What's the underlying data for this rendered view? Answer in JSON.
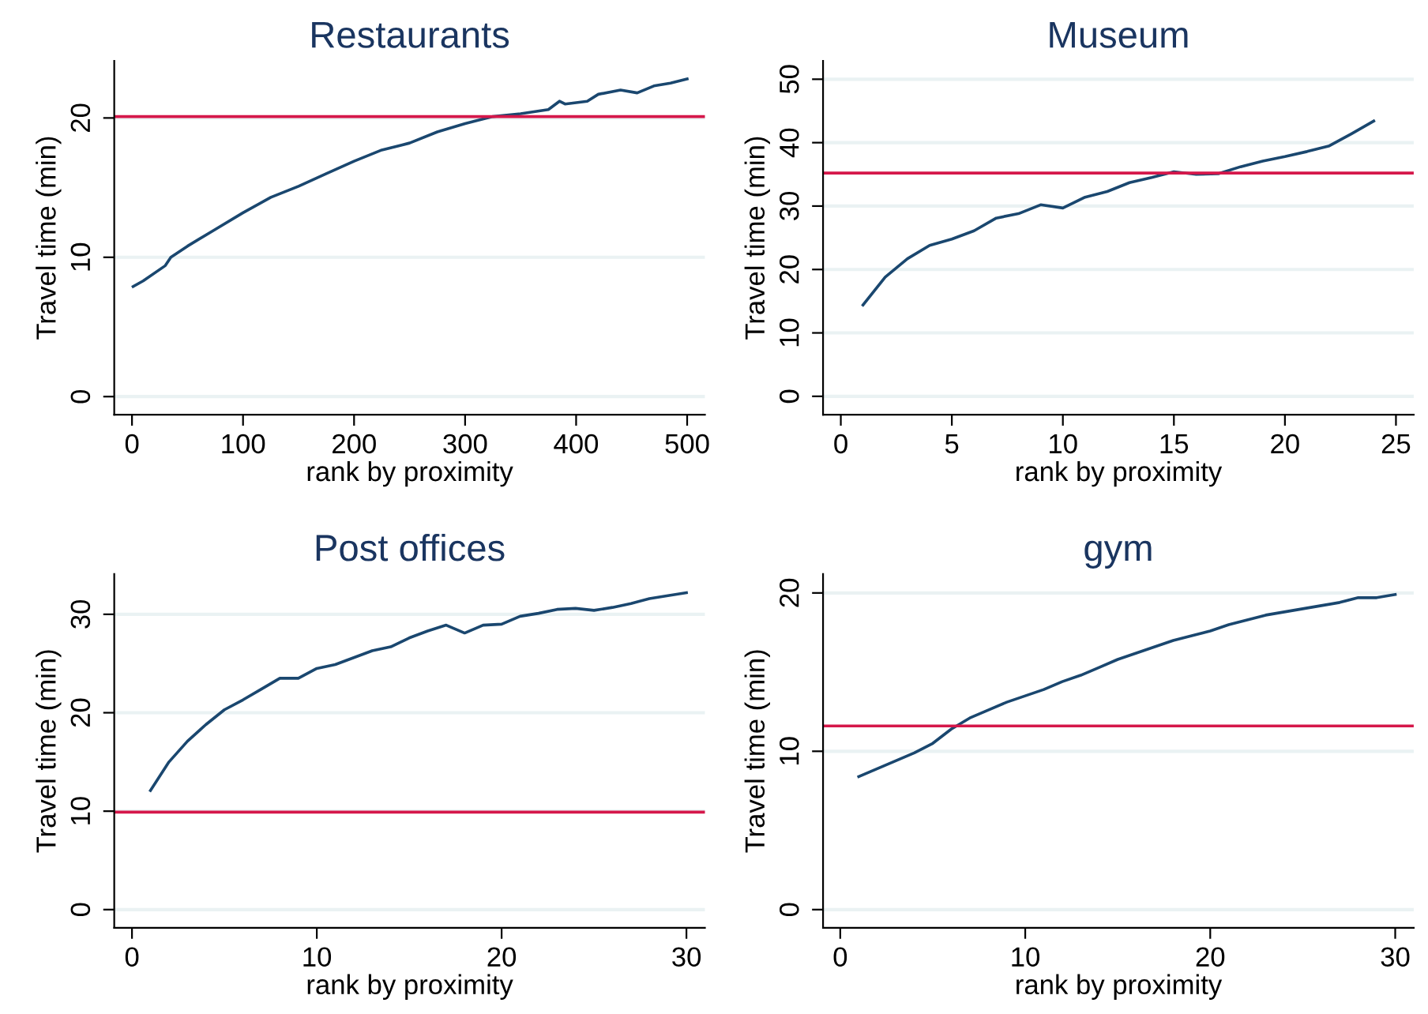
{
  "chart_data": [
    {
      "type": "line",
      "title": "Restaurants",
      "xlabel": "rank by proximity",
      "ylabel": "Travel time (min)",
      "grid": "y",
      "xlim": [
        -16,
        516
      ],
      "ylim": [
        -1.3,
        24.1
      ],
      "xticks": [
        0,
        100,
        200,
        300,
        400,
        500
      ],
      "yticks": [
        0,
        10,
        20
      ],
      "series": [
        {
          "color": "#1a476f",
          "x": [
            1,
            10,
            30,
            35,
            50,
            75,
            100,
            125,
            150,
            175,
            200,
            225,
            250,
            275,
            300,
            325,
            350,
            375,
            385,
            390,
            410,
            420,
            440,
            455,
            470,
            485,
            500
          ],
          "values": [
            7.9,
            8.3,
            9.4,
            10.0,
            10.8,
            12.0,
            13.2,
            14.3,
            15.1,
            16.0,
            16.9,
            17.7,
            18.2,
            19.0,
            19.6,
            20.1,
            20.3,
            20.6,
            21.2,
            21.0,
            21.2,
            21.7,
            22.0,
            21.8,
            22.3,
            22.5,
            22.8
          ]
        }
      ],
      "ref_lines": [
        {
          "axis": "y",
          "value": 20.1,
          "color": "#d5174a"
        }
      ]
    },
    {
      "type": "line",
      "title": "Museum",
      "xlabel": "rank by proximity",
      "ylabel": "Travel time (min)",
      "grid": "y",
      "xlim": [
        -0.8,
        25.8
      ],
      "ylim": [
        -2.9,
        52.9
      ],
      "xticks": [
        0,
        5,
        10,
        15,
        20,
        25
      ],
      "yticks": [
        0,
        10,
        20,
        30,
        40,
        50
      ],
      "series": [
        {
          "color": "#1a476f",
          "x": [
            1,
            2,
            3,
            4,
            5,
            6,
            7,
            8,
            9,
            10,
            11,
            12,
            13,
            14,
            15,
            16,
            17,
            18,
            19,
            20,
            21,
            22,
            23,
            24
          ],
          "values": [
            14.4,
            18.8,
            21.7,
            23.8,
            24.8,
            26.1,
            28.1,
            28.8,
            30.2,
            29.7,
            31.4,
            32.3,
            33.7,
            34.5,
            35.4,
            35.0,
            35.1,
            36.2,
            37.1,
            37.8,
            38.6,
            39.5,
            41.4,
            43.4
          ]
        }
      ],
      "ref_lines": [
        {
          "axis": "y",
          "value": 35.2,
          "color": "#d5174a"
        }
      ]
    },
    {
      "type": "line",
      "title": "Post offices",
      "xlabel": "rank by proximity",
      "ylabel": "Travel time (min)",
      "grid": "y",
      "xlim": [
        -0.96,
        31
      ],
      "ylim": [
        -1.85,
        34.1
      ],
      "xticks": [
        0,
        10,
        20,
        30
      ],
      "yticks": [
        0,
        10,
        20,
        30
      ],
      "series": [
        {
          "color": "#1a476f",
          "x": [
            1,
            2,
            3,
            4,
            5,
            6,
            7,
            8,
            9,
            10,
            11,
            12,
            13,
            14,
            15,
            16,
            17,
            18,
            19,
            20,
            21,
            22,
            23,
            24,
            25,
            26,
            27,
            28,
            29,
            30
          ],
          "values": [
            12.1,
            15.0,
            17.1,
            18.8,
            20.3,
            21.3,
            22.4,
            23.5,
            23.5,
            24.5,
            24.9,
            25.6,
            26.3,
            26.7,
            27.6,
            28.3,
            28.9,
            28.1,
            28.9,
            29.0,
            29.8,
            30.1,
            30.5,
            30.6,
            30.4,
            30.7,
            31.1,
            31.6,
            31.9,
            32.2
          ]
        }
      ],
      "ref_lines": [
        {
          "axis": "y",
          "value": 9.9,
          "color": "#d5174a"
        }
      ]
    },
    {
      "type": "line",
      "title": "gym",
      "xlabel": "rank by proximity",
      "ylabel": "Travel time (min)",
      "grid": "y",
      "xlim": [
        -0.93,
        31
      ],
      "ylim": [
        -1.15,
        21.2
      ],
      "xticks": [
        0,
        10,
        20,
        30
      ],
      "yticks": [
        0,
        10,
        20
      ],
      "series": [
        {
          "color": "#1a476f",
          "x": [
            1,
            2,
            3,
            4,
            5,
            6,
            7,
            8,
            9,
            10,
            11,
            12,
            13,
            14,
            15,
            16,
            17,
            18,
            19,
            20,
            21,
            22,
            23,
            24,
            25,
            26,
            27,
            28,
            29,
            30
          ],
          "values": [
            8.4,
            8.9,
            9.4,
            9.9,
            10.5,
            11.4,
            12.1,
            12.6,
            13.1,
            13.5,
            13.9,
            14.4,
            14.8,
            15.3,
            15.8,
            16.2,
            16.6,
            17.0,
            17.3,
            17.6,
            18.0,
            18.3,
            18.6,
            18.8,
            19.0,
            19.2,
            19.4,
            19.7,
            19.7,
            19.9
          ]
        }
      ],
      "ref_lines": [
        {
          "axis": "y",
          "value": 11.6,
          "color": "#d5174a"
        }
      ]
    }
  ]
}
